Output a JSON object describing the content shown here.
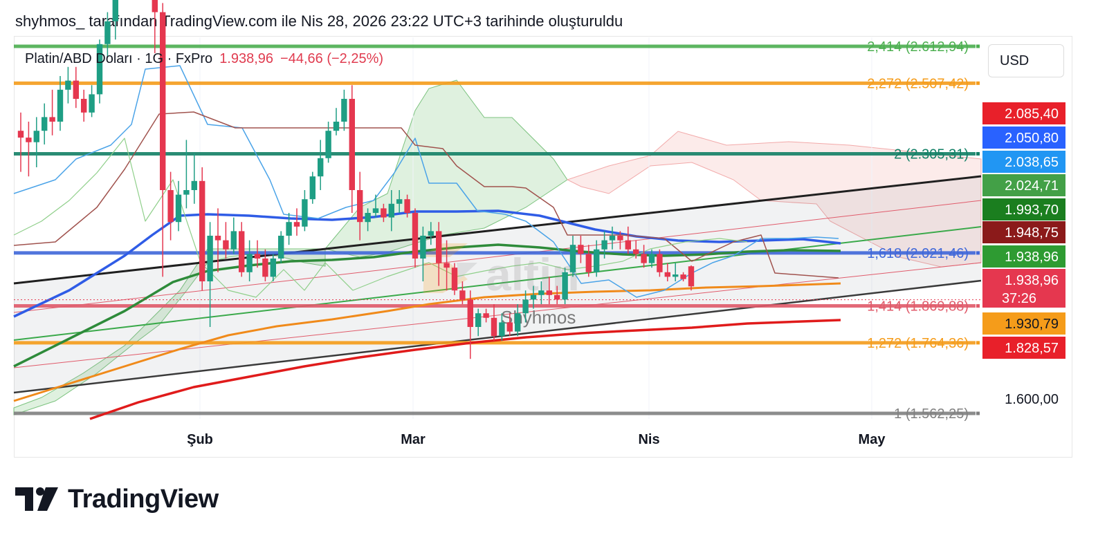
{
  "caption": "shyhmos_ tarafından TradingView.com ile Nis 28, 2026 23:22 UTC+3 tarihinde oluşturuldu",
  "legend": {
    "symbol": "Platin/ABD Doları · 1G · FxPro",
    "price": "1.938,96",
    "change": "−44,66 (−2,25%)"
  },
  "currency_button": "USD",
  "watermark": {
    "logo_text": "altin",
    "author": "Shyhmos"
  },
  "brand": "TradingView",
  "colors": {
    "up": "#1e9e84",
    "down": "#e5374f",
    "fib_green": "#4caf50",
    "fib_orange": "#f59c1a",
    "fib_teal": "#138066",
    "fib_blue": "#3f67d9",
    "fib_red": "#e05a6a",
    "fib_gray": "#808080"
  },
  "chart_data": {
    "type": "candlestick",
    "x_labels": [
      "Şub",
      "Mar",
      "Nis",
      "May"
    ],
    "y_tick_labels": [
      "1.600,00"
    ],
    "ohlc": [
      {
        "o": 2280,
        "h": 2320,
        "l": 2190,
        "c": 2265
      },
      {
        "o": 2265,
        "h": 2300,
        "l": 2180,
        "c": 2255
      },
      {
        "o": 2255,
        "h": 2310,
        "l": 2200,
        "c": 2280
      },
      {
        "o": 2280,
        "h": 2340,
        "l": 2250,
        "c": 2310
      },
      {
        "o": 2310,
        "h": 2370,
        "l": 2270,
        "c": 2300
      },
      {
        "o": 2300,
        "h": 2400,
        "l": 2280,
        "c": 2370
      },
      {
        "o": 2370,
        "h": 2420,
        "l": 2340,
        "c": 2390
      },
      {
        "o": 2390,
        "h": 2420,
        "l": 2330,
        "c": 2350
      },
      {
        "o": 2350,
        "h": 2370,
        "l": 2300,
        "c": 2320
      },
      {
        "o": 2320,
        "h": 2380,
        "l": 2310,
        "c": 2360
      },
      {
        "o": 2360,
        "h": 2480,
        "l": 2340,
        "c": 2470
      },
      {
        "o": 2470,
        "h": 2540,
        "l": 2440,
        "c": 2520
      },
      {
        "o": 2520,
        "h": 2620,
        "l": 2480,
        "c": 2600
      },
      {
        "o": 2600,
        "h": 2680,
        "l": 2570,
        "c": 2650
      },
      {
        "o": 2650,
        "h": 2700,
        "l": 2600,
        "c": 2620
      },
      {
        "o": 2620,
        "h": 2680,
        "l": 2590,
        "c": 2640
      },
      {
        "o": 2640,
        "h": 2710,
        "l": 2600,
        "c": 2620
      },
      {
        "o": 2620,
        "h": 2640,
        "l": 2450,
        "c": 2540
      },
      {
        "o": 2540,
        "h": 2560,
        "l": 1960,
        "c": 2150
      },
      {
        "o": 2150,
        "h": 2190,
        "l": 2040,
        "c": 2080
      },
      {
        "o": 2080,
        "h": 2170,
        "l": 2060,
        "c": 2140
      },
      {
        "o": 2140,
        "h": 2260,
        "l": 2110,
        "c": 2150
      },
      {
        "o": 2150,
        "h": 2230,
        "l": 2120,
        "c": 2170
      },
      {
        "o": 2170,
        "h": 2200,
        "l": 1930,
        "c": 1950
      },
      {
        "o": 1950,
        "h": 2080,
        "l": 1850,
        "c": 2050
      },
      {
        "o": 2050,
        "h": 2110,
        "l": 1970,
        "c": 2040
      },
      {
        "o": 2040,
        "h": 2080,
        "l": 2000,
        "c": 2020
      },
      {
        "o": 2020,
        "h": 2090,
        "l": 2010,
        "c": 2060
      },
      {
        "o": 2060,
        "h": 2080,
        "l": 1960,
        "c": 1970
      },
      {
        "o": 1970,
        "h": 2040,
        "l": 1950,
        "c": 2010
      },
      {
        "o": 2010,
        "h": 2040,
        "l": 1980,
        "c": 2000
      },
      {
        "o": 2000,
        "h": 2020,
        "l": 1950,
        "c": 1960
      },
      {
        "o": 1960,
        "h": 2010,
        "l": 1950,
        "c": 2000
      },
      {
        "o": 2000,
        "h": 2060,
        "l": 1990,
        "c": 2050
      },
      {
        "o": 2050,
        "h": 2100,
        "l": 2030,
        "c": 2080
      },
      {
        "o": 2080,
        "h": 2110,
        "l": 2050,
        "c": 2070
      },
      {
        "o": 2070,
        "h": 2150,
        "l": 2060,
        "c": 2130
      },
      {
        "o": 2130,
        "h": 2190,
        "l": 2120,
        "c": 2180
      },
      {
        "o": 2180,
        "h": 2260,
        "l": 2150,
        "c": 2220
      },
      {
        "o": 2220,
        "h": 2300,
        "l": 2210,
        "c": 2280
      },
      {
        "o": 2280,
        "h": 2330,
        "l": 2270,
        "c": 2300
      },
      {
        "o": 2300,
        "h": 2370,
        "l": 2280,
        "c": 2350
      },
      {
        "o": 2350,
        "h": 2380,
        "l": 2100,
        "c": 2150
      },
      {
        "o": 2150,
        "h": 2190,
        "l": 2040,
        "c": 2080
      },
      {
        "o": 2080,
        "h": 2110,
        "l": 2060,
        "c": 2100
      },
      {
        "o": 2100,
        "h": 2140,
        "l": 2090,
        "c": 2110
      },
      {
        "o": 2110,
        "h": 2120,
        "l": 2080,
        "c": 2090
      },
      {
        "o": 2090,
        "h": 2150,
        "l": 2060,
        "c": 2120
      },
      {
        "o": 2120,
        "h": 2150,
        "l": 2100,
        "c": 2130
      },
      {
        "o": 2130,
        "h": 2140,
        "l": 2090,
        "c": 2100
      },
      {
        "o": 2100,
        "h": 2110,
        "l": 1980,
        "c": 2000
      },
      {
        "o": 2000,
        "h": 2070,
        "l": 1950,
        "c": 2050
      },
      {
        "o": 2050,
        "h": 2080,
        "l": 2030,
        "c": 2060
      },
      {
        "o": 2060,
        "h": 2080,
        "l": 1940,
        "c": 1990
      },
      {
        "o": 1990,
        "h": 2040,
        "l": 1930,
        "c": 1980
      },
      {
        "o": 1980,
        "h": 1990,
        "l": 1920,
        "c": 1930
      },
      {
        "o": 1930,
        "h": 1950,
        "l": 1900,
        "c": 1910
      },
      {
        "o": 1910,
        "h": 1930,
        "l": 1780,
        "c": 1850
      },
      {
        "o": 1850,
        "h": 1890,
        "l": 1830,
        "c": 1880
      },
      {
        "o": 1880,
        "h": 1890,
        "l": 1860,
        "c": 1870
      },
      {
        "o": 1870,
        "h": 1900,
        "l": 1820,
        "c": 1830
      },
      {
        "o": 1830,
        "h": 1880,
        "l": 1820,
        "c": 1860
      },
      {
        "o": 1860,
        "h": 1880,
        "l": 1830,
        "c": 1840
      },
      {
        "o": 1840,
        "h": 1900,
        "l": 1830,
        "c": 1880
      },
      {
        "o": 1880,
        "h": 1930,
        "l": 1860,
        "c": 1910
      },
      {
        "o": 1910,
        "h": 1940,
        "l": 1890,
        "c": 1920
      },
      {
        "o": 1920,
        "h": 1950,
        "l": 1900,
        "c": 1930
      },
      {
        "o": 1930,
        "h": 1960,
        "l": 1900,
        "c": 1920
      },
      {
        "o": 1920,
        "h": 1940,
        "l": 1900,
        "c": 1910
      },
      {
        "o": 1910,
        "h": 1980,
        "l": 1900,
        "c": 1970
      },
      {
        "o": 1970,
        "h": 2050,
        "l": 1960,
        "c": 2030
      },
      {
        "o": 2030,
        "h": 2050,
        "l": 1990,
        "c": 2010
      },
      {
        "o": 2010,
        "h": 2030,
        "l": 1960,
        "c": 1970
      },
      {
        "o": 1970,
        "h": 2040,
        "l": 1960,
        "c": 2020
      },
      {
        "o": 2020,
        "h": 2060,
        "l": 2000,
        "c": 2040
      },
      {
        "o": 2040,
        "h": 2070,
        "l": 2020,
        "c": 2050
      },
      {
        "o": 2050,
        "h": 2060,
        "l": 2020,
        "c": 2040
      },
      {
        "o": 2040,
        "h": 2070,
        "l": 2010,
        "c": 2020
      },
      {
        "o": 2020,
        "h": 2040,
        "l": 2000,
        "c": 2010
      },
      {
        "o": 2010,
        "h": 2030,
        "l": 1980,
        "c": 1990
      },
      {
        "o": 1990,
        "h": 2020,
        "l": 1980,
        "c": 2010
      },
      {
        "o": 2010,
        "h": 2020,
        "l": 1960,
        "c": 1970
      },
      {
        "o": 1970,
        "h": 1990,
        "l": 1950,
        "c": 1960
      },
      {
        "o": 1960,
        "h": 1990,
        "l": 1950,
        "c": 1965
      },
      {
        "o": 1965,
        "h": 1970,
        "l": 1950,
        "c": 1955
      },
      {
        "o": 1983,
        "h": 1985,
        "l": 1930,
        "c": 1939
      }
    ],
    "fibonacci": [
      {
        "label": "2,414 (2.612,94)",
        "price": 2612.94,
        "color": "#4caf50"
      },
      {
        "label": "2,272 (2.507,42)",
        "price": 2507.42,
        "color": "#f59c1a"
      },
      {
        "label": "2 (2.305,31)",
        "price": 2305.31,
        "color": "#138066"
      },
      {
        "label": "1,618 (2.021,46)",
        "price": 2021.46,
        "color": "#3f67d9"
      },
      {
        "label": "1,414 (1.869,88)",
        "price": 1869.88,
        "color": "#e05a6a"
      },
      {
        "label": "1,272 (1.764,36)",
        "price": 1764.36,
        "color": "#f59c1a"
      },
      {
        "label": "1 (1.562,25)",
        "price": 1562.25,
        "color": "#808080"
      }
    ],
    "price_tags": [
      {
        "text": "2.085,40",
        "price": 2085.4,
        "bg": "#e8202a",
        "fg": "#ffffff"
      },
      {
        "text": "2.050,80",
        "price": 2050.8,
        "bg": "#2962ff",
        "fg": "#ffffff"
      },
      {
        "text": "2.038,65",
        "price": 2038.65,
        "bg": "#2196f3",
        "fg": "#ffffff"
      },
      {
        "text": "2.024,71",
        "price": 2024.71,
        "bg": "#43a047",
        "fg": "#ffffff"
      },
      {
        "text": "1.993,70",
        "price": 1993.7,
        "bg": "#1b7e1f",
        "fg": "#ffffff"
      },
      {
        "text": "1.948,75",
        "price": 1948.75,
        "bg": "#8b1a1a",
        "fg": "#ffffff"
      },
      {
        "text": "1.938,96",
        "price": 1938.96,
        "bg": "#2e9b32",
        "fg": "#ffffff"
      },
      {
        "text": "1.938,96",
        "price": 1938.96,
        "bg": "#e5374f",
        "fg": "#ffffff",
        "sub": "37:26"
      },
      {
        "text": "1.930,79",
        "price": 1930.79,
        "bg": "#f59c1a",
        "fg": "#131722"
      },
      {
        "text": "1.828,57",
        "price": 1828.57,
        "bg": "#e8202a",
        "fg": "#ffffff"
      }
    ],
    "current_price": 1938.96
  }
}
